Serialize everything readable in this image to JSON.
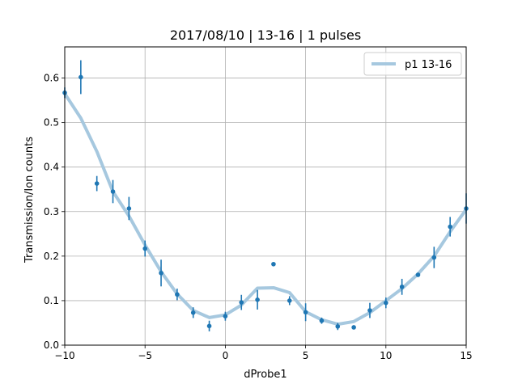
{
  "chart_data": {
    "type": "scatter",
    "title": "2017/08/10 |  13-16 | 1 pulses",
    "xlabel": "dProbe1",
    "ylabel": "Transmission/Ion counts",
    "xlim": [
      -10,
      15
    ],
    "ylim": [
      0,
      0.67
    ],
    "xticks": [
      -10,
      -5,
      0,
      5,
      10,
      15
    ],
    "xtick_labels": [
      "−10",
      "−5",
      "0",
      "5",
      "10",
      "15"
    ],
    "yticks": [
      0.0,
      0.1,
      0.2,
      0.3,
      0.4,
      0.5,
      0.6
    ],
    "ytick_labels": [
      "0.0",
      "0.1",
      "0.2",
      "0.3",
      "0.4",
      "0.5",
      "0.6"
    ],
    "grid": true,
    "legend_position": "top-right",
    "legend": [
      {
        "label": "p1 13-16",
        "color": "#a6c8df"
      }
    ],
    "series": [
      {
        "name": "p1 13-16",
        "kind": "line",
        "color": "#a6c8df",
        "x": [
          -10,
          -9,
          -8,
          -7,
          -6,
          -5,
          -4,
          -3,
          -2,
          -1,
          0,
          1,
          2,
          3,
          4,
          5,
          6,
          7,
          8,
          9,
          10,
          11,
          12,
          13,
          14,
          15
        ],
        "y": [
          0.565,
          0.51,
          0.435,
          0.345,
          0.29,
          0.225,
          0.165,
          0.115,
          0.078,
          0.062,
          0.068,
          0.09,
          0.128,
          0.129,
          0.118,
          0.075,
          0.057,
          0.047,
          0.053,
          0.073,
          0.1,
          0.127,
          0.16,
          0.2,
          0.255,
          0.305
        ]
      },
      {
        "kind": "errorbar",
        "color": "#1f77b4",
        "x": [
          -10,
          -9,
          -8,
          -7,
          -6,
          -5,
          -4,
          -3,
          -2,
          -1,
          0,
          1,
          2,
          3,
          4,
          5,
          6,
          7,
          8,
          9,
          10,
          11,
          12,
          13,
          14,
          15
        ],
        "y": [
          0.567,
          0.602,
          0.363,
          0.345,
          0.307,
          0.217,
          0.162,
          0.114,
          0.073,
          0.043,
          0.065,
          0.096,
          0.102,
          0.182,
          0.1,
          0.074,
          0.055,
          0.042,
          0.04,
          0.078,
          0.095,
          0.131,
          0.158,
          0.197,
          0.266,
          0.307
        ],
        "yerr": [
          0.012,
          0.038,
          0.017,
          0.026,
          0.026,
          0.018,
          0.03,
          0.013,
          0.012,
          0.012,
          0.01,
          0.017,
          0.022,
          0.004,
          0.01,
          0.02,
          0.007,
          0.008,
          0.004,
          0.017,
          0.012,
          0.018,
          0.004,
          0.024,
          0.022,
          0.034
        ]
      }
    ]
  }
}
